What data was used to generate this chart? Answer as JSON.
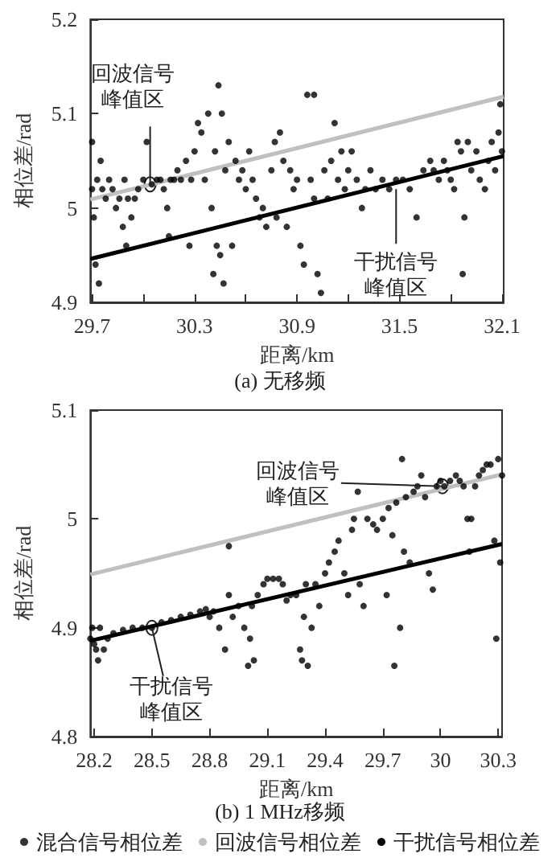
{
  "chart_data": [
    {
      "type": "scatter",
      "title": "(a) 无移频",
      "xlabel": "距离/km",
      "ylabel": "相位差/rad",
      "xlim": [
        29.69,
        32.11
      ],
      "ylim": [
        4.9,
        5.2
      ],
      "xticks": [
        29.7,
        {
          "value": 30.0,
          "label": null
        },
        30.3,
        {
          "value": 30.6,
          "label": null
        },
        30.9,
        {
          "value": 31.2,
          "label": null
        },
        31.5,
        {
          "value": 31.8,
          "label": null
        },
        32.1
      ],
      "yticks": [
        4.9,
        5.0,
        5.1,
        5.2
      ],
      "grid": false,
      "legend": false,
      "marker": "circle",
      "annotations": [
        {
          "text": "回波信号峰值区",
          "x": 30.04,
          "y": 5.025
        },
        {
          "text": "干扰信号峰值区",
          "x": 31.48,
          "y": 5.02
        }
      ],
      "series": [
        {
          "color": "#000000",
          "x": [
            29.7,
            29.7,
            29.71,
            29.72,
            29.73,
            29.74,
            29.75,
            29.76,
            29.78,
            29.8,
            29.82,
            29.84,
            29.86,
            29.88,
            29.89,
            29.9,
            29.91,
            29.93,
            29.95,
            29.97,
            30.0,
            30.02,
            30.05,
            30.08,
            30.1,
            30.12,
            30.14,
            30.15,
            30.16,
            30.18,
            30.2,
            30.22,
            30.25,
            30.27,
            30.28,
            30.3,
            30.32,
            30.34,
            30.36,
            30.38,
            30.4,
            30.41,
            30.42,
            30.43,
            30.44,
            30.45,
            30.46,
            30.47,
            30.48,
            30.5,
            30.52,
            30.54,
            30.56,
            30.58,
            30.6,
            30.62,
            30.64,
            30.66,
            30.68,
            30.7,
            30.72,
            30.75,
            30.77,
            30.78,
            30.8,
            30.82,
            30.84,
            30.86,
            30.88,
            30.9,
            30.92,
            30.94,
            30.96,
            30.98,
            31.0,
            31.0,
            31.02,
            31.04,
            31.06,
            31.08,
            31.1,
            31.12,
            31.14,
            31.16,
            31.18,
            31.2,
            31.22,
            31.25,
            31.28,
            31.3,
            31.33,
            31.36,
            31.4,
            31.44,
            31.48,
            31.52,
            31.56,
            31.6,
            31.64,
            31.68,
            31.7,
            31.73,
            31.76,
            31.78,
            31.8,
            31.82,
            31.84,
            31.86,
            31.87,
            31.88,
            31.9,
            31.92,
            31.95,
            31.97,
            32.0,
            32.02,
            32.04,
            32.06,
            32.08,
            32.09,
            32.1
          ],
          "values": [
            5.02,
            5.07,
            4.99,
            4.94,
            5.03,
            4.92,
            5.05,
            5.02,
            5.01,
            5.03,
            5.02,
            5.0,
            5.01,
            4.98,
            5.03,
            4.96,
            5.01,
            4.99,
            5.01,
            5.02,
            5.03,
            5.07,
            5.025,
            5.03,
            5.03,
            5.02,
            5.0,
            4.97,
            5.03,
            5.03,
            5.04,
            5.03,
            5.05,
            4.96,
            5.03,
            5.06,
            5.09,
            5.08,
            5.03,
            5.1,
            5.0,
            4.93,
            5.06,
            4.96,
            5.13,
            4.95,
            5.1,
            4.92,
            5.04,
            5.07,
            4.96,
            5.05,
            5.03,
            5.04,
            5.02,
            5.06,
            5.03,
            5.01,
            4.99,
            5.0,
            4.98,
            5.04,
            5.07,
            4.99,
            5.08,
            5.05,
            4.98,
            5.04,
            5.02,
            5.03,
            4.96,
            4.94,
            5.12,
            5.03,
            5.12,
            5.01,
            4.93,
            4.91,
            5.04,
            5.01,
            5.05,
            5.09,
            5.03,
            5.06,
            5.02,
            5.04,
            5.06,
            5.03,
            5.0,
            5.02,
            5.04,
            5.02,
            5.03,
            5.02,
            5.03,
            5.03,
            5.02,
            4.99,
            5.04,
            5.05,
            5.04,
            5.03,
            5.05,
            5.04,
            5.03,
            5.02,
            5.07,
            5.06,
            4.93,
            4.99,
            5.07,
            5.04,
            5.06,
            5.03,
            5.02,
            5.05,
            5.07,
            5.04,
            5.08,
            5.11,
            5.06
          ]
        },
        {
          "type": "line",
          "color": "#c0c0c0",
          "line_style": "solid",
          "marker": "none",
          "x": [
            29.69,
            32.11
          ],
          "values": [
            5.009,
            5.118
          ]
        },
        {
          "type": "line",
          "color": "#000000",
          "line_style": "solid",
          "marker": "none",
          "x": [
            29.69,
            32.11
          ],
          "values": [
            4.946,
            5.055
          ]
        }
      ]
    },
    {
      "type": "scatter",
      "title": "(b) 1 MHz移频",
      "xlabel": "距离/km",
      "ylabel": "相位差/rad",
      "xlim": [
        28.18,
        30.32
      ],
      "ylim": [
        4.8,
        5.1
      ],
      "xticks": [
        28.2,
        28.5,
        28.8,
        29.1,
        29.4,
        29.7,
        30.0,
        30.3
      ],
      "yticks": [
        4.8,
        4.9,
        5.0,
        5.1
      ],
      "grid": false,
      "legend": "bottom",
      "marker": "circle",
      "annotations": [
        {
          "text": "回波信号峰值区",
          "x": 30.01,
          "y": 5.03
        },
        {
          "text": "干扰信号峰值区",
          "x": 28.5,
          "y": 4.9
        }
      ],
      "series": [
        {
          "name": "混合信号相位差",
          "color": "#000000",
          "x": [
            28.18,
            28.19,
            28.2,
            28.21,
            28.22,
            28.23,
            28.25,
            28.27,
            28.3,
            28.35,
            28.4,
            28.45,
            28.5,
            28.55,
            28.6,
            28.65,
            28.7,
            28.75,
            28.78,
            28.8,
            28.82,
            28.85,
            28.88,
            28.9,
            28.9,
            28.92,
            28.95,
            28.98,
            29.0,
            29.01,
            29.02,
            29.03,
            29.05,
            29.08,
            29.1,
            29.13,
            29.16,
            29.18,
            29.2,
            29.22,
            29.25,
            29.27,
            29.28,
            29.29,
            29.3,
            29.31,
            29.33,
            29.35,
            29.37,
            29.4,
            29.42,
            29.45,
            29.47,
            29.5,
            29.52,
            29.54,
            29.55,
            29.57,
            29.58,
            29.6,
            29.62,
            29.65,
            29.67,
            29.7,
            29.72,
            29.73,
            29.75,
            29.76,
            29.77,
            29.79,
            29.8,
            29.81,
            29.82,
            29.84,
            29.86,
            29.88,
            29.9,
            29.92,
            29.94,
            29.96,
            29.98,
            30.0,
            30.02,
            30.05,
            30.08,
            30.1,
            30.12,
            30.14,
            30.15,
            30.16,
            30.18,
            30.2,
            30.22,
            30.24,
            30.26,
            30.28,
            30.29,
            30.3,
            30.31,
            30.32
          ],
          "values": [
            4.89,
            4.9,
            4.885,
            4.88,
            4.87,
            4.9,
            4.88,
            4.89,
            4.895,
            4.898,
            4.9,
            4.9,
            4.9,
            4.905,
            4.907,
            4.91,
            4.912,
            4.915,
            4.917,
            4.91,
            4.915,
            4.9,
            4.88,
            4.975,
            4.93,
            4.91,
            4.92,
            4.9,
            4.865,
            4.89,
            4.92,
            4.87,
            4.93,
            4.94,
            4.945,
            4.945,
            4.945,
            4.94,
            4.925,
            4.93,
            4.93,
            4.88,
            4.87,
            4.91,
            4.94,
            4.865,
            4.9,
            4.94,
            4.92,
            4.95,
            4.96,
            4.97,
            4.98,
            4.95,
            4.93,
            4.99,
            5.0,
            5.025,
            4.94,
            4.92,
            5.0,
            4.995,
            4.99,
            5.0,
            4.93,
            5.01,
            4.985,
            4.865,
            5.015,
            4.9,
            5.055,
            4.97,
            5.02,
            4.96,
            5.025,
            5.03,
            5.04,
            5.02,
            4.95,
            4.935,
            5.03,
            5.035,
            5.03,
            5.035,
            5.04,
            5.035,
            5.03,
            5.0,
            4.97,
            5.0,
            5.03,
            5.04,
            5.045,
            5.05,
            5.05,
            4.98,
            4.89,
            5.055,
            4.96,
            5.04
          ]
        },
        {
          "name": "回波信号相位差",
          "type": "line",
          "color": "#c0c0c0",
          "line_style": "solid",
          "marker": "none",
          "x": [
            28.18,
            30.32
          ],
          "values": [
            4.949,
            5.041
          ]
        },
        {
          "name": "干扰信号相位差",
          "type": "line",
          "color": "#000000",
          "line_style": "solid",
          "marker": "none",
          "x": [
            28.18,
            30.32
          ],
          "values": [
            4.888,
            4.977
          ]
        }
      ]
    }
  ]
}
